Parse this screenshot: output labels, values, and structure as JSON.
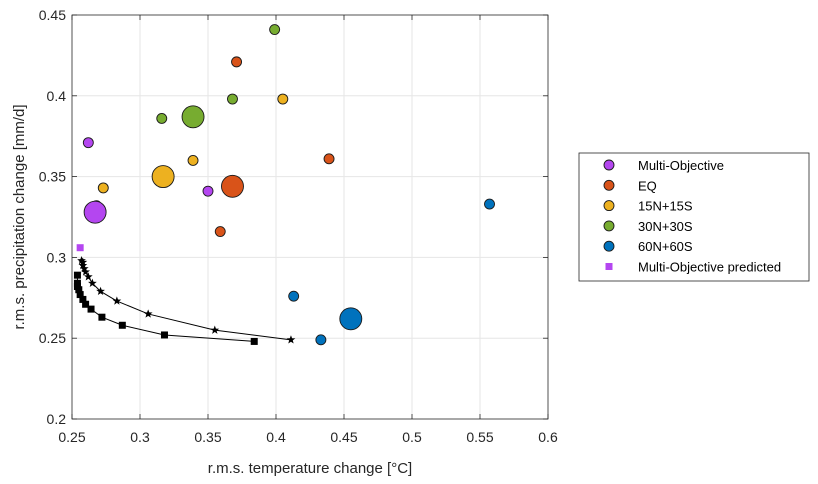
{
  "chart_data": {
    "type": "scatter",
    "xlabel": "r.m.s. temperature change [°C]",
    "ylabel": "r.m.s. precipitation change [mm/d]",
    "xlim": [
      0.25,
      0.6
    ],
    "ylim": [
      0.2,
      0.45
    ],
    "xticks": [
      "0.25",
      "0.3",
      "0.35",
      "0.4",
      "0.45",
      "0.5",
      "0.55",
      "0.6"
    ],
    "yticks": [
      "0.2",
      "0.25",
      "0.3",
      "0.35",
      "0.4",
      "0.45"
    ],
    "xtick_values": [
      0.25,
      0.3,
      0.35,
      0.4,
      0.45,
      0.5,
      0.55,
      0.6
    ],
    "ytick_values": [
      0.2,
      0.25,
      0.3,
      0.35,
      0.4,
      0.45
    ],
    "grid": true,
    "legend_position": "outside-right",
    "series": [
      {
        "name": "Multi-Objective",
        "color": "#B446F0",
        "marker": "circle",
        "points": [
          {
            "x": 0.262,
            "y": 0.371,
            "size": "small"
          },
          {
            "x": 0.268,
            "y": 0.332,
            "size": "small"
          },
          {
            "x": 0.267,
            "y": 0.328,
            "size": "large"
          },
          {
            "x": 0.35,
            "y": 0.341,
            "size": "small"
          }
        ]
      },
      {
        "name": "EQ",
        "color": "#D95319",
        "marker": "circle",
        "points": [
          {
            "x": 0.371,
            "y": 0.421,
            "size": "small"
          },
          {
            "x": 0.439,
            "y": 0.361,
            "size": "small"
          },
          {
            "x": 0.368,
            "y": 0.344,
            "size": "large"
          },
          {
            "x": 0.359,
            "y": 0.316,
            "size": "small"
          }
        ]
      },
      {
        "name": "15N+15S",
        "color": "#EDB120",
        "marker": "circle",
        "points": [
          {
            "x": 0.405,
            "y": 0.398,
            "size": "small"
          },
          {
            "x": 0.339,
            "y": 0.36,
            "size": "small"
          },
          {
            "x": 0.317,
            "y": 0.35,
            "size": "large"
          },
          {
            "x": 0.273,
            "y": 0.343,
            "size": "small"
          }
        ]
      },
      {
        "name": "30N+30S",
        "color": "#77AC30",
        "marker": "circle",
        "points": [
          {
            "x": 0.399,
            "y": 0.441,
            "size": "small"
          },
          {
            "x": 0.368,
            "y": 0.398,
            "size": "small"
          },
          {
            "x": 0.339,
            "y": 0.387,
            "size": "large"
          },
          {
            "x": 0.316,
            "y": 0.386,
            "size": "small"
          }
        ]
      },
      {
        "name": "60N+60S",
        "color": "#0072BD",
        "marker": "circle",
        "points": [
          {
            "x": 0.557,
            "y": 0.333,
            "size": "small"
          },
          {
            "x": 0.413,
            "y": 0.276,
            "size": "small"
          },
          {
            "x": 0.455,
            "y": 0.262,
            "size": "large"
          },
          {
            "x": 0.433,
            "y": 0.249,
            "size": "small"
          }
        ]
      },
      {
        "name": "Multi-Objective predicted",
        "color": "#B446F0",
        "marker": "square",
        "points": [
          {
            "x": 0.256,
            "y": 0.306
          }
        ]
      }
    ],
    "curves": [
      {
        "name": "star frontier",
        "marker": "star",
        "color": "#000000",
        "x": [
          0.411,
          0.355,
          0.306,
          0.283,
          0.271,
          0.265,
          0.262,
          0.26,
          0.259,
          0.258,
          0.258,
          0.257
        ],
        "y": [
          0.249,
          0.255,
          0.265,
          0.273,
          0.279,
          0.284,
          0.288,
          0.291,
          0.293,
          0.295,
          0.297,
          0.298
        ]
      },
      {
        "name": "square frontier",
        "marker": "square",
        "color": "#000000",
        "x": [
          0.384,
          0.318,
          0.287,
          0.272,
          0.264,
          0.26,
          0.258,
          0.256,
          0.255,
          0.254,
          0.254,
          0.254
        ],
        "y": [
          0.248,
          0.252,
          0.258,
          0.263,
          0.268,
          0.271,
          0.274,
          0.277,
          0.28,
          0.282,
          0.284,
          0.289
        ]
      }
    ],
    "legend": [
      {
        "label": "Multi-Objective",
        "color": "#B446F0",
        "marker": "circle"
      },
      {
        "label": "EQ",
        "color": "#D95319",
        "marker": "circle"
      },
      {
        "label": "15N+15S",
        "color": "#EDB120",
        "marker": "circle"
      },
      {
        "label": "30N+30S",
        "color": "#77AC30",
        "marker": "circle"
      },
      {
        "label": "60N+60S",
        "color": "#0072BD",
        "marker": "circle"
      },
      {
        "label": "Multi-Objective predicted",
        "color": "#B446F0",
        "marker": "square"
      }
    ]
  }
}
